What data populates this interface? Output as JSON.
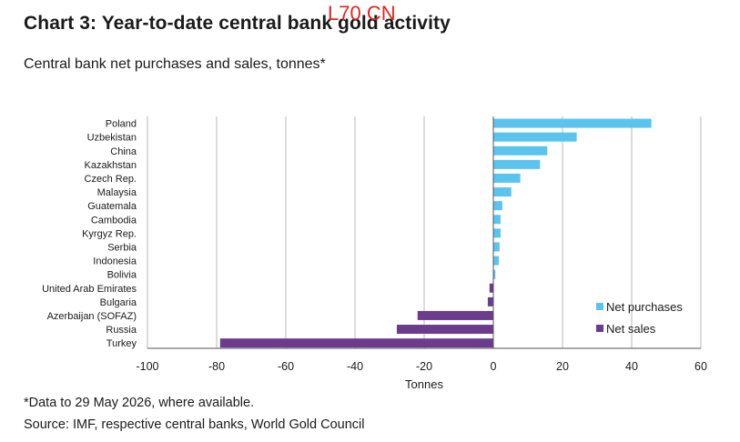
{
  "title": "Chart 3: Year-to-date central bank gold activity",
  "watermark": "L70 CN",
  "subtitle": "Central bank net purchases and sales, tonnes*",
  "footnote": "*Data to 29 May 2026, where available.",
  "source": "Source: IMF, respective central banks, World Gold Council",
  "colors": {
    "purchases": "#5bc4ee",
    "sales": "#6b3c8e",
    "grid": "#b8b8b8",
    "axis": "#555555"
  },
  "chart_data": {
    "type": "bar",
    "orientation": "horizontal",
    "xlabel": "Tonnes",
    "xlim": [
      -100,
      60
    ],
    "xticks": [
      -100,
      -80,
      -60,
      -40,
      -20,
      0,
      20,
      40,
      60
    ],
    "grid": true,
    "legend_position": "bottom-right",
    "categories": [
      "Poland",
      "Uzbekistan",
      "China",
      "Kazakhstan",
      "Czech Rep.",
      "Malaysia",
      "Guatemala",
      "Cambodia",
      "Kyrgyz Rep.",
      "Serbia",
      "Indonesia",
      "Bolivia",
      "United Arab Emirates",
      "Bulgaria",
      "Azerbaijan (SOFAZ)",
      "Russia",
      "Turkey"
    ],
    "values": [
      45.7,
      24.1,
      15.6,
      13.5,
      7.8,
      5.2,
      2.6,
      2.1,
      2.1,
      1.8,
      1.6,
      0.6,
      -1.1,
      -1.6,
      -21.9,
      -27.9,
      -79.0
    ],
    "series": [
      {
        "name": "Net purchases",
        "color": "#5bc4ee"
      },
      {
        "name": "Net sales",
        "color": "#6b3c8e"
      }
    ]
  }
}
